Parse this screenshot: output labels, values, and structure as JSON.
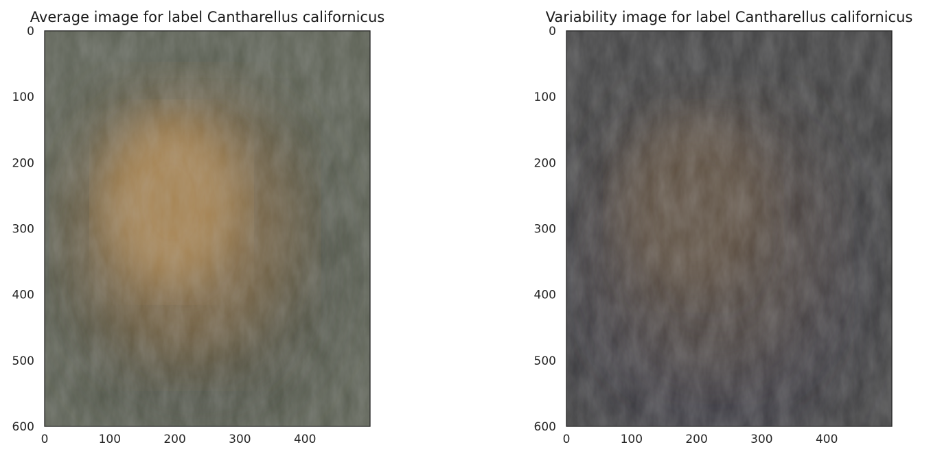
{
  "chart_data": [
    {
      "type": "heatmap",
      "title": "Average image for label Cantharellus californicus",
      "xlabel": "",
      "ylabel": "",
      "xlim": [
        0,
        500
      ],
      "ylim": [
        600,
        0
      ],
      "x_ticks": [
        0,
        100,
        200,
        300,
        400
      ],
      "y_ticks": [
        0,
        100,
        200,
        300,
        400,
        500,
        600
      ],
      "grid": false,
      "image": {
        "background_color": "#5a5f52",
        "center_color": "#b08a55",
        "mid_color": "#8a6d45",
        "shadow_color": "#3e3f36"
      }
    },
    {
      "type": "heatmap",
      "title": "Variability image for label Cantharellus californicus",
      "xlabel": "",
      "ylabel": "",
      "xlim": [
        0,
        500
      ],
      "ylim": [
        600,
        0
      ],
      "x_ticks": [
        0,
        100,
        200,
        300,
        400
      ],
      "y_ticks": [
        0,
        100,
        200,
        300,
        400,
        500,
        600
      ],
      "grid": false,
      "image": {
        "background_color": "#3f3f40",
        "center_color": "#6c5a44",
        "mid_color": "#544a40",
        "shadow_color": "#3a3846"
      }
    }
  ]
}
